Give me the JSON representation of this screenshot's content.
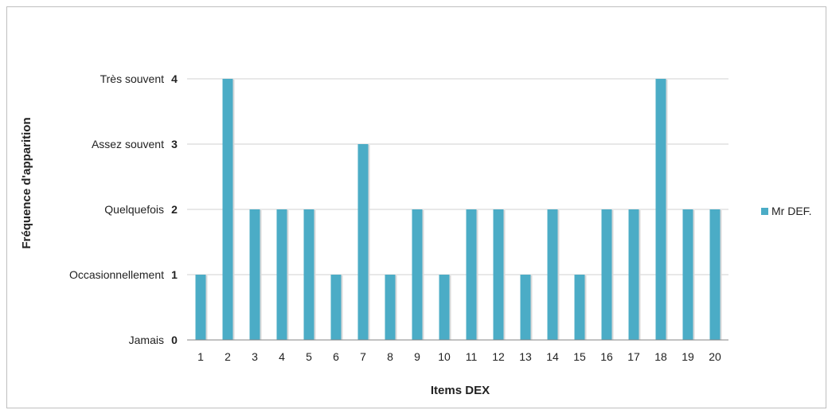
{
  "chart_data": {
    "type": "bar",
    "title": "",
    "xlabel": "Items DEX",
    "ylabel": "Fréquence d'apparition",
    "categories": [
      "1",
      "2",
      "3",
      "4",
      "5",
      "6",
      "7",
      "8",
      "9",
      "10",
      "11",
      "12",
      "13",
      "14",
      "15",
      "16",
      "17",
      "18",
      "19",
      "20"
    ],
    "series": [
      {
        "name": "Mr DEF.",
        "values": [
          1,
          4,
          2,
          2,
          2,
          1,
          3,
          1,
          2,
          1,
          2,
          2,
          1,
          2,
          1,
          2,
          2,
          4,
          2,
          2
        ]
      }
    ],
    "ylim": [
      0,
      4
    ],
    "yticks": [
      0,
      1,
      2,
      3,
      4
    ],
    "ytick_labels": [
      "Jamais",
      "Occasionnellement",
      "Quelquefois",
      "Assez souvent",
      "Très souvent"
    ],
    "grid": true,
    "legend_position": "right",
    "colors": {
      "bar": "#4BACC6",
      "grid": "#d0d0d0",
      "axis": "#868686"
    }
  }
}
